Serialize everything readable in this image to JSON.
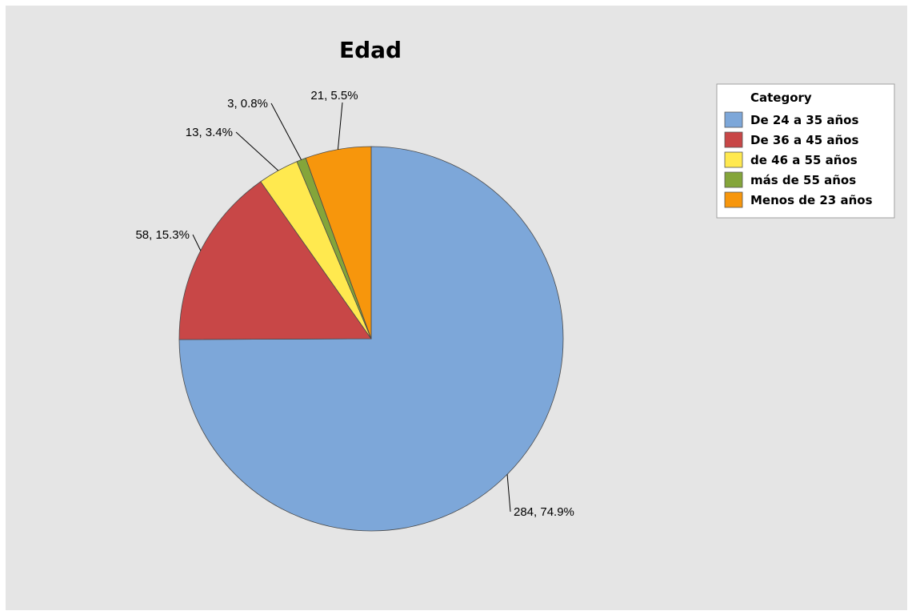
{
  "chart_data": {
    "type": "pie",
    "title": "Edad",
    "legend": {
      "title": "Category",
      "position": "top-right",
      "entries": [
        "De 24 a 35 años",
        "De 36 a 45 años",
        "de 46 a 55 años",
        "más de 55 años",
        "Menos de 23 años"
      ]
    },
    "categories": [
      "De 24 a 35 años",
      "De 36 a 45 años",
      "de 46 a 55 años",
      "más de 55 años",
      "Menos de 23 años"
    ],
    "values": [
      284,
      58,
      13,
      3,
      21
    ],
    "percentages": [
      74.9,
      15.3,
      3.4,
      0.8,
      5.5
    ],
    "slice_labels": [
      "284, 74.9%",
      "58, 15.3%",
      "13, 3.4%",
      "3, 0.8%",
      "21, 5.5%"
    ],
    "colors": [
      "#7da7d9",
      "#c84747",
      "#ffe94f",
      "#84a53a",
      "#f7960c"
    ],
    "start_angle_deg": 0,
    "direction": "clockwise-from-top"
  }
}
